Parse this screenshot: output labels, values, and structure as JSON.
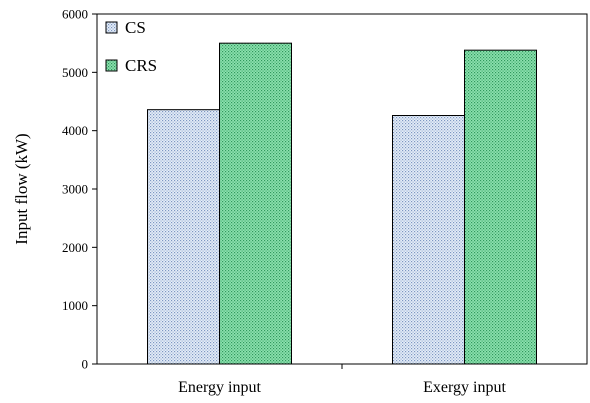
{
  "chart_data": {
    "type": "bar",
    "categories": [
      "Energy input",
      "Exergy input"
    ],
    "series": [
      {
        "name": "CS",
        "values": [
          4360,
          4260
        ],
        "color": "#c8d8ec",
        "pattern": "dotted"
      },
      {
        "name": "CRS",
        "values": [
          5500,
          5380
        ],
        "color": "#6bcf94",
        "pattern": "dotted"
      }
    ],
    "title": "",
    "xlabel": "",
    "ylabel": "Input flow (kW)",
    "ylim": [
      0,
      6000
    ],
    "yticks": [
      0,
      1000,
      2000,
      3000,
      4000,
      5000,
      6000
    ],
    "grid": false,
    "legend_position": "top-left"
  }
}
